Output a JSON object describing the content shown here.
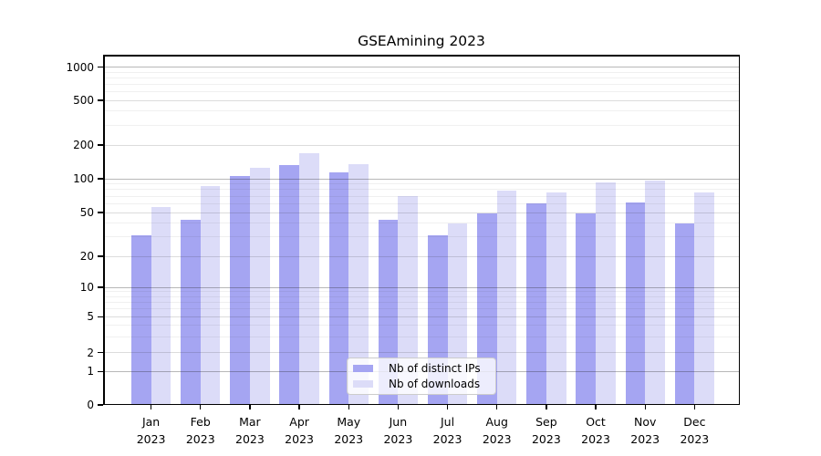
{
  "chart_data": {
    "type": "bar",
    "title": "GSEAmining 2023",
    "categories": [
      "Jan",
      "Feb",
      "Mar",
      "Apr",
      "May",
      "Jun",
      "Jul",
      "Aug",
      "Sep",
      "Oct",
      "Nov",
      "Dec"
    ],
    "year_label": "2023",
    "series": [
      {
        "name": "Nb of distinct IPs",
        "color": "#a5a5f2",
        "values": [
          31,
          43,
          106,
          132,
          115,
          43,
          31,
          49,
          60,
          49,
          61,
          40
        ]
      },
      {
        "name": "Nb of downloads",
        "color": "#dcdcf8",
        "values": [
          56,
          86,
          125,
          170,
          134,
          70,
          40,
          79,
          75,
          93,
          97,
          75
        ]
      }
    ],
    "xlabel": "",
    "ylabel": "",
    "yscale": "symlog",
    "yticks": [
      0,
      1,
      2,
      5,
      10,
      20,
      50,
      100,
      200,
      500,
      1000
    ],
    "minor_gridlines": [
      3,
      4,
      6,
      7,
      8,
      9,
      30,
      40,
      60,
      70,
      80,
      90,
      300,
      400,
      600,
      700,
      800,
      900
    ],
    "ylim": [
      0,
      1280
    ],
    "grid": "both",
    "legend_position": "lower center"
  },
  "colors": {
    "background": "#ffffff",
    "spine": "#000000",
    "grid_major": "#b4b4b4",
    "grid_labeled": "#d8d8d8",
    "grid_minor": "#ececec",
    "legend_border": "#cccccc"
  }
}
